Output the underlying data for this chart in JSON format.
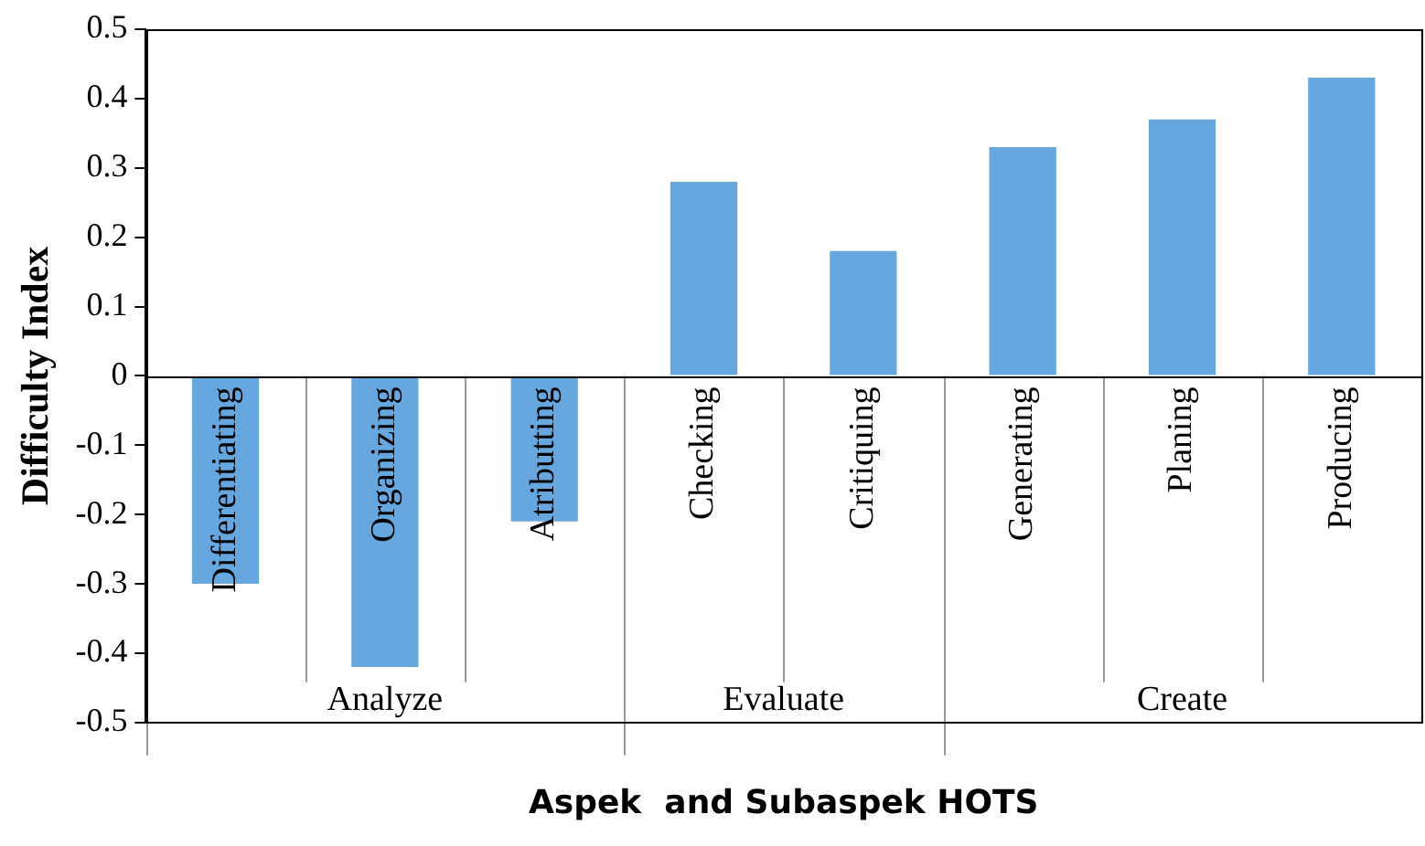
{
  "chart_data": {
    "type": "bar",
    "xlabel": "Aspek  and Subaspek HOTS",
    "ylabel": "Difficulty Index",
    "categories": [
      "Differentiating",
      "Organizing",
      "Atributting",
      "Checking",
      "Critiquing",
      "Generating",
      "Planing",
      "Producing"
    ],
    "values": [
      -0.3,
      -0.42,
      -0.21,
      0.28,
      0.18,
      0.33,
      0.37,
      0.43
    ],
    "color": "#65a7de",
    "ylim": [
      -0.5,
      0.5
    ],
    "yticks": [
      -0.5,
      -0.4,
      -0.3,
      -0.2,
      -0.1,
      0,
      0.1,
      0.2,
      0.3,
      0.4,
      0.5
    ],
    "annotations": [
      "Analyze",
      "Evaluate",
      "Create"
    ]
  }
}
